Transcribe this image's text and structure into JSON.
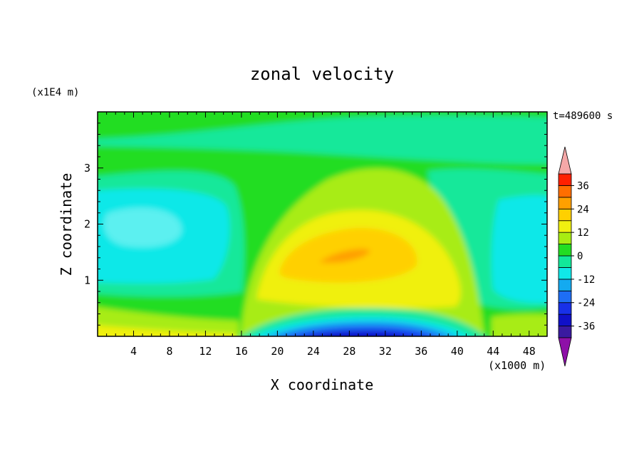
{
  "chart_data": {
    "type": "heatmap",
    "title": "zonal velocity",
    "xlabel": "X coordinate",
    "ylabel": "Z coordinate",
    "x_unit": "(x1000 m)",
    "y_unit": "(x1E4 m)",
    "time_label": "t=489600 s",
    "xlim": [
      0,
      50
    ],
    "ylim": [
      0,
      4
    ],
    "x_ticks": [
      "4",
      "8",
      "12",
      "16",
      "20",
      "24",
      "28",
      "32",
      "36",
      "40",
      "44",
      "48"
    ],
    "y_ticks": [
      "1",
      "2",
      "3"
    ],
    "colorbar": {
      "levels": [
        -42,
        -36,
        -30,
        -24,
        -18,
        -12,
        -6,
        0,
        6,
        12,
        18,
        24,
        30,
        36,
        42
      ],
      "tick_labels": [
        "36",
        "24",
        "12",
        "0",
        "-12",
        "-24",
        "-36"
      ],
      "colors": [
        "#8e10a8",
        "#3a1aa0",
        "#1010c8",
        "#1830e8",
        "#1e6ef5",
        "#14aaf0",
        "#10e8e8",
        "#12e89a",
        "#22dd22",
        "#a8ec12",
        "#f0f010",
        "#ffd000",
        "#ffa000",
        "#ff6e00",
        "#ff2000",
        "#f5a8a8"
      ],
      "extend": "both"
    },
    "features": [
      {
        "name": "positive jet core",
        "x_center": 29,
        "z_center": 1.45,
        "max_value": 20
      },
      {
        "name": "surface negative flow",
        "x_center": 28,
        "z_center": 0.1,
        "min_value": -33
      },
      {
        "name": "upper-left negative region",
        "x_center": 6,
        "z_center": 1.6,
        "min_value": -10
      }
    ]
  }
}
